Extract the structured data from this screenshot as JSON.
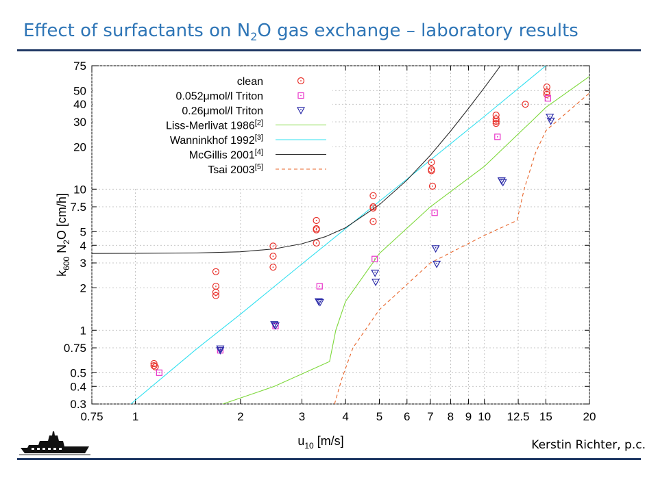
{
  "header": {
    "title_prefix": "Effect of surfactants on N",
    "title_sub": "2",
    "title_suffix": "O gas exchange – laboratory results"
  },
  "footer": {
    "credit": "Kerstin Richter, p.c."
  },
  "icons": {
    "ship": "research-ship-icon"
  },
  "colors": {
    "rule": "#1f3864",
    "title": "#2e75b6"
  },
  "chart_data": {
    "type": "scatter",
    "x_scale": "log",
    "y_scale": "log",
    "xlim": [
      0.75,
      20
    ],
    "ylim": [
      0.3,
      75
    ],
    "xlabel": "u10 [m/s]",
    "ylabel": "k600 N2O [cm/h]",
    "xticks": [
      0.75,
      1,
      2,
      3,
      4,
      5,
      6,
      7,
      8,
      9,
      10,
      12.5,
      15,
      20
    ],
    "xtick_labels": [
      "0.75",
      "1",
      "2",
      "3",
      "4",
      "5",
      "6",
      "7",
      "8",
      "9",
      "10",
      "12.5",
      "15",
      "20"
    ],
    "yticks": [
      0.3,
      0.4,
      0.5,
      0.75,
      1,
      2,
      3,
      4,
      5,
      7.5,
      10,
      20,
      30,
      40,
      50,
      75
    ],
    "ytick_labels": [
      "0.3",
      "0.4",
      "0.5",
      "0.75",
      "1",
      "2",
      "3",
      "4",
      "5",
      "7.5",
      "10",
      "20",
      "30",
      "40",
      "50",
      "75"
    ],
    "grid": true,
    "legend_position": "top-left",
    "series": [
      {
        "name": "clean",
        "kind": "points",
        "marker": "circle",
        "color": "#e8302a",
        "points": [
          [
            1.13,
            0.58
          ],
          [
            1.13,
            0.56
          ],
          [
            1.14,
            0.55
          ],
          [
            1.7,
            2.6
          ],
          [
            1.7,
            2.05
          ],
          [
            1.7,
            1.86
          ],
          [
            1.7,
            1.76
          ],
          [
            2.48,
            3.95
          ],
          [
            2.48,
            3.35
          ],
          [
            2.48,
            2.8
          ],
          [
            3.3,
            6.0
          ],
          [
            3.3,
            5.25
          ],
          [
            3.3,
            5.15
          ],
          [
            3.3,
            4.15
          ],
          [
            4.8,
            9.0
          ],
          [
            4.8,
            7.5
          ],
          [
            4.8,
            7.35
          ],
          [
            4.8,
            5.9
          ],
          [
            7.05,
            15.5
          ],
          [
            7.05,
            13.8
          ],
          [
            7.05,
            13.5
          ],
          [
            7.1,
            10.5
          ],
          [
            10.8,
            33.5
          ],
          [
            10.8,
            31.5
          ],
          [
            10.8,
            30.3
          ],
          [
            10.8,
            29.3
          ],
          [
            13.1,
            40
          ],
          [
            15.1,
            53
          ],
          [
            15.1,
            49
          ],
          [
            15.1,
            47
          ]
        ]
      },
      {
        "name": "0.052μmol/l Triton",
        "kind": "points",
        "marker": "square",
        "color": "#e830c8",
        "points": [
          [
            1.17,
            0.5
          ],
          [
            1.75,
            0.72
          ],
          [
            2.52,
            1.07
          ],
          [
            3.37,
            2.05
          ],
          [
            4.85,
            3.2
          ],
          [
            7.2,
            6.8
          ],
          [
            10.9,
            23.5
          ],
          [
            15.2,
            44
          ]
        ]
      },
      {
        "name": "0.26μmol/l Triton",
        "kind": "points",
        "marker": "triangle",
        "color": "#2a2aa8",
        "points": [
          [
            1.75,
            0.74
          ],
          [
            1.75,
            0.72
          ],
          [
            2.5,
            1.1
          ],
          [
            2.52,
            1.08
          ],
          [
            3.35,
            1.6
          ],
          [
            3.38,
            1.58
          ],
          [
            4.86,
            2.55
          ],
          [
            4.88,
            2.2
          ],
          [
            7.25,
            3.8
          ],
          [
            7.3,
            2.95
          ],
          [
            11.2,
            11.5
          ],
          [
            11.3,
            11.2
          ],
          [
            15.4,
            32.5
          ],
          [
            15.5,
            30.5
          ]
        ]
      },
      {
        "name": "Liss-Merlivat 1986[2]",
        "kind": "line",
        "color": "#7dd83a",
        "dash": "",
        "points": [
          [
            1.78,
            0.3
          ],
          [
            2.5,
            0.4
          ],
          [
            3.6,
            0.6
          ],
          [
            3.75,
            1.0
          ],
          [
            4.0,
            1.6
          ],
          [
            5.0,
            3.5
          ],
          [
            7.0,
            7.5
          ],
          [
            10.0,
            14.5
          ],
          [
            13.0,
            27
          ],
          [
            13.6,
            30
          ],
          [
            15.0,
            38
          ],
          [
            20,
            63
          ]
        ]
      },
      {
        "name": "Wanninkhof 1992[3]",
        "kind": "line",
        "color": "#30e0f0",
        "dash": "",
        "points": [
          [
            0.97,
            0.3
          ],
          [
            1.5,
            0.74
          ],
          [
            2.0,
            1.3
          ],
          [
            3.0,
            2.95
          ],
          [
            4.0,
            5.25
          ],
          [
            6.0,
            11.8
          ],
          [
            8.0,
            21
          ],
          [
            10.0,
            32.8
          ],
          [
            14.5,
            70
          ],
          [
            15.0,
            75
          ]
        ]
      },
      {
        "name": "McGillis 2001[4]",
        "kind": "line",
        "color": "#2a2a2a",
        "dash": "",
        "points": [
          [
            0.75,
            3.5
          ],
          [
            1.0,
            3.51
          ],
          [
            1.5,
            3.53
          ],
          [
            2.0,
            3.6
          ],
          [
            2.5,
            3.77
          ],
          [
            3.0,
            4.1
          ],
          [
            3.5,
            4.6
          ],
          [
            4.0,
            5.33
          ],
          [
            5.0,
            7.76
          ],
          [
            6.0,
            11.6
          ],
          [
            7.0,
            17.4
          ],
          [
            8.0,
            25.8
          ],
          [
            9.0,
            37.3
          ],
          [
            10.0,
            52.5
          ],
          [
            11.0,
            72.3
          ],
          [
            11.1,
            75
          ]
        ]
      },
      {
        "name": "Tsai 2003[5]",
        "kind": "line",
        "color": "#e8652a",
        "dash": "5,4",
        "points": [
          [
            3.72,
            0.3
          ],
          [
            3.9,
            0.45
          ],
          [
            4.2,
            0.75
          ],
          [
            5.0,
            1.4
          ],
          [
            7.0,
            3.0
          ],
          [
            10.0,
            4.7
          ],
          [
            12.4,
            6.0
          ],
          [
            13.0,
            10
          ],
          [
            14.0,
            18
          ],
          [
            15.0,
            26
          ],
          [
            20,
            48
          ]
        ]
      }
    ]
  }
}
